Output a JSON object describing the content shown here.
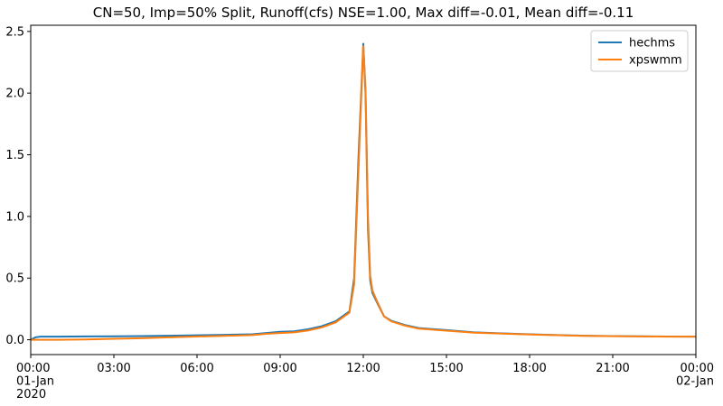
{
  "chart_data": {
    "type": "line",
    "title": "CN=50, Imp=50% Split, Runoff(cfs) NSE=1.00, Max diff=-0.01, Mean diff=-0.11",
    "xlabel": "",
    "ylabel": "",
    "x_range_hours": [
      0,
      24
    ],
    "ylim": [
      -0.12,
      2.55
    ],
    "x_ticks": [
      {
        "hour": 0,
        "lines": [
          "00:00",
          "01-Jan",
          "2020"
        ]
      },
      {
        "hour": 3,
        "lines": [
          "03:00"
        ]
      },
      {
        "hour": 6,
        "lines": [
          "06:00"
        ]
      },
      {
        "hour": 9,
        "lines": [
          "09:00"
        ]
      },
      {
        "hour": 12,
        "lines": [
          "12:00"
        ]
      },
      {
        "hour": 15,
        "lines": [
          "15:00"
        ]
      },
      {
        "hour": 18,
        "lines": [
          "18:00"
        ]
      },
      {
        "hour": 21,
        "lines": [
          "21:00"
        ]
      },
      {
        "hour": 24,
        "lines": [
          "00:00",
          "02-Jan"
        ]
      }
    ],
    "y_ticks": [
      0.0,
      0.5,
      1.0,
      1.5,
      2.0,
      2.5
    ],
    "y_tick_labels": [
      "0.0",
      "0.5",
      "1.0",
      "1.5",
      "2.0",
      "2.5"
    ],
    "grid": false,
    "legend_position": "top-right",
    "series": [
      {
        "name": "hechms",
        "color": "#1f77b4",
        "points": [
          [
            0,
            0.0
          ],
          [
            0.17,
            0.02
          ],
          [
            0.33,
            0.025
          ],
          [
            1,
            0.025
          ],
          [
            2,
            0.027
          ],
          [
            3,
            0.028
          ],
          [
            4,
            0.03
          ],
          [
            5,
            0.033
          ],
          [
            6,
            0.036
          ],
          [
            7,
            0.04
          ],
          [
            8,
            0.045
          ],
          [
            8.5,
            0.055
          ],
          [
            9,
            0.065
          ],
          [
            9.5,
            0.068
          ],
          [
            10,
            0.085
          ],
          [
            10.5,
            0.11
          ],
          [
            11,
            0.15
          ],
          [
            11.5,
            0.23
          ],
          [
            11.67,
            0.5
          ],
          [
            11.83,
            1.5
          ],
          [
            12,
            2.4
          ],
          [
            12.08,
            2.0
          ],
          [
            12.17,
            0.9
          ],
          [
            12.25,
            0.48
          ],
          [
            12.33,
            0.38
          ],
          [
            12.5,
            0.3
          ],
          [
            12.75,
            0.19
          ],
          [
            13,
            0.155
          ],
          [
            13.5,
            0.12
          ],
          [
            14,
            0.095
          ],
          [
            15,
            0.078
          ],
          [
            16,
            0.06
          ],
          [
            17,
            0.052
          ],
          [
            18,
            0.045
          ],
          [
            19,
            0.038
          ],
          [
            20,
            0.033
          ],
          [
            21,
            0.03
          ],
          [
            22,
            0.028
          ],
          [
            23,
            0.026
          ],
          [
            24,
            0.025
          ]
        ]
      },
      {
        "name": "xpswmm",
        "color": "#ff7f0e",
        "points": [
          [
            0,
            0.0
          ],
          [
            1,
            0.0
          ],
          [
            2,
            0.003
          ],
          [
            3,
            0.008
          ],
          [
            4,
            0.013
          ],
          [
            5,
            0.02
          ],
          [
            6,
            0.026
          ],
          [
            7,
            0.032
          ],
          [
            8,
            0.038
          ],
          [
            8.5,
            0.048
          ],
          [
            9,
            0.055
          ],
          [
            9.5,
            0.06
          ],
          [
            10,
            0.075
          ],
          [
            10.5,
            0.1
          ],
          [
            11,
            0.14
          ],
          [
            11.5,
            0.22
          ],
          [
            11.67,
            0.45
          ],
          [
            11.83,
            1.4
          ],
          [
            12,
            2.38
          ],
          [
            12.08,
            2.05
          ],
          [
            12.17,
            1.0
          ],
          [
            12.25,
            0.52
          ],
          [
            12.33,
            0.4
          ],
          [
            12.5,
            0.31
          ],
          [
            12.75,
            0.19
          ],
          [
            13,
            0.15
          ],
          [
            13.5,
            0.115
          ],
          [
            14,
            0.09
          ],
          [
            15,
            0.074
          ],
          [
            16,
            0.057
          ],
          [
            17,
            0.05
          ],
          [
            18,
            0.043
          ],
          [
            19,
            0.037
          ],
          [
            20,
            0.032
          ],
          [
            21,
            0.029
          ],
          [
            22,
            0.027
          ],
          [
            23,
            0.025
          ],
          [
            24,
            0.025
          ]
        ]
      }
    ]
  }
}
